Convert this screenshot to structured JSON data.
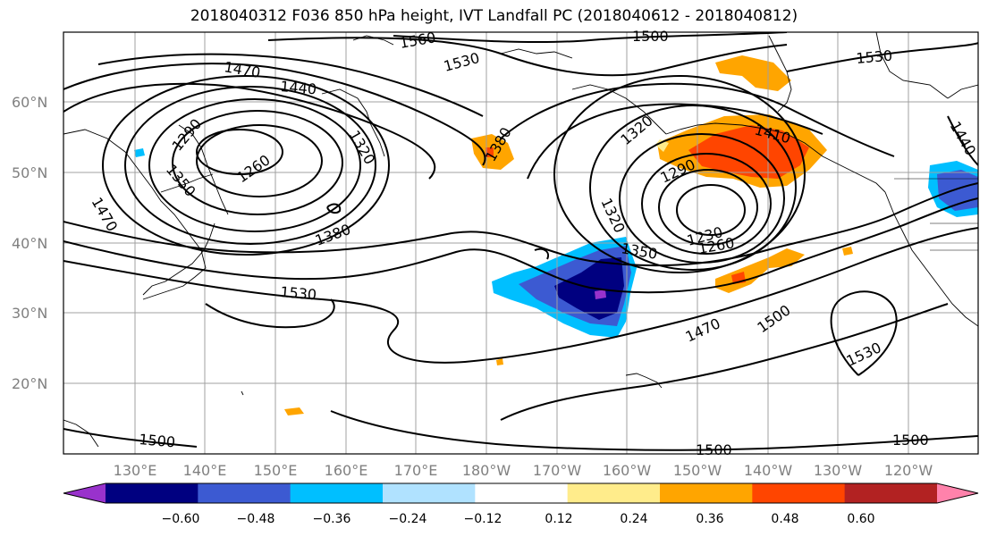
{
  "title": "2018040312 F036 850 hPa height, IVT Landfall PC (2018040612 - 2018040812)",
  "lat_labels": [
    "60°N",
    "50°N",
    "40°N",
    "30°N",
    "20°N"
  ],
  "lon_labels": [
    "130°E",
    "140°E",
    "150°E",
    "160°E",
    "170°E",
    "180°W",
    "170°W",
    "160°W",
    "150°W",
    "140°W",
    "130°W",
    "120°W"
  ],
  "contour_labels": [
    "1560",
    "1500",
    "1530",
    "1530",
    "1470",
    "1440",
    "1290",
    "1320",
    "1260",
    "1350",
    "1470",
    "1380",
    "1380",
    "1320",
    "1410",
    "1290",
    "1320",
    "1230",
    "1260",
    "1350",
    "1530",
    "1470",
    "1500",
    "1530",
    "1500",
    "1500",
    "1500",
    "1440"
  ],
  "colorbar": {
    "colors": [
      "#9932cc",
      "#000080",
      "#3c5ad2",
      "#00bfff",
      "#b0e2ff",
      "#ffffff",
      "#ffec8b",
      "#ffa500",
      "#ff4500",
      "#b22222",
      "#ff82ab"
    ],
    "tick_labels": [
      "−0.60",
      "−0.48",
      "−0.36",
      "−0.24",
      "−0.12",
      "0.12",
      "0.24",
      "0.36",
      "0.48",
      "0.60"
    ]
  }
}
